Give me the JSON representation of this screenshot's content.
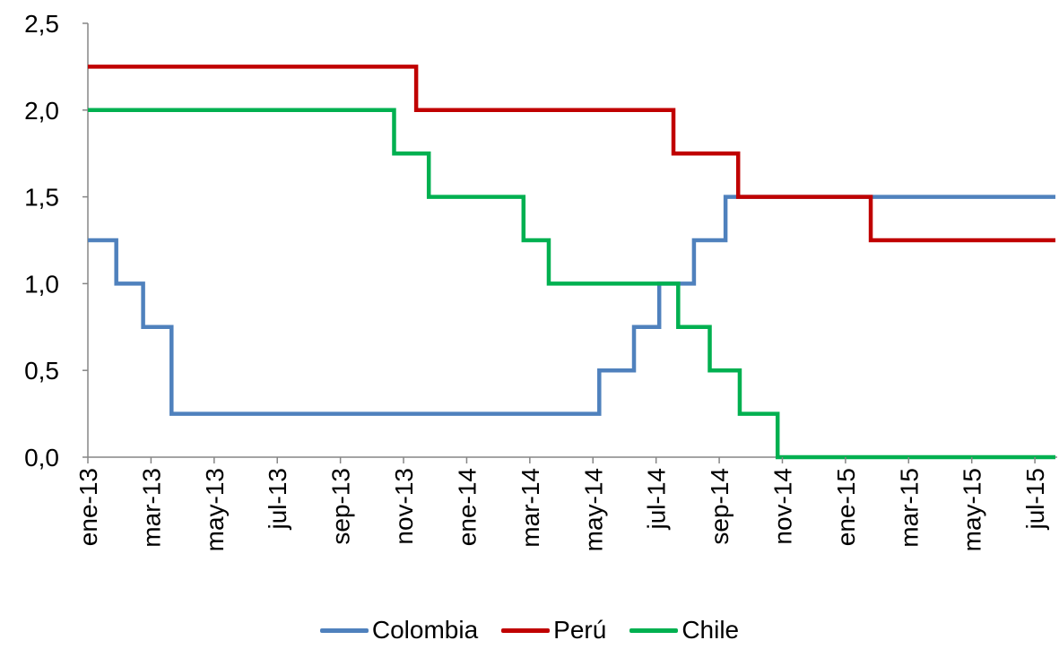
{
  "chart_data": {
    "type": "line",
    "title": "",
    "xlabel": "",
    "ylabel": "",
    "ylim": [
      0,
      2.5
    ],
    "yticks": [
      "0,0",
      "0,5",
      "1,0",
      "1,5",
      "2,0",
      "2,5"
    ],
    "ytick_values": [
      0,
      0.5,
      1.0,
      1.5,
      2.0,
      2.5
    ],
    "x_tick_labels": [
      "ene-13",
      "mar-13",
      "may-13",
      "jul-13",
      "sep-13",
      "nov-13",
      "ene-14",
      "mar-14",
      "may-14",
      "jul-14",
      "sep-14",
      "nov-14",
      "ene-15",
      "mar-15",
      "may-15",
      "jul-15"
    ],
    "x_tick_months": [
      0,
      2,
      4,
      6,
      8,
      10,
      12,
      14,
      16,
      18,
      20,
      22,
      24,
      26,
      28,
      30
    ],
    "x_range_months": [
      0,
      30.65
    ],
    "grid": false,
    "legend_position": "bottom",
    "step": true,
    "series": [
      {
        "name": "Colombia",
        "color": "#4F81BD",
        "points": [
          [
            0,
            1.25
          ],
          [
            0.9,
            1.0
          ],
          [
            1.75,
            0.75
          ],
          [
            2.65,
            0.25
          ],
          [
            16.2,
            0.5
          ],
          [
            17.3,
            0.75
          ],
          [
            18.1,
            1.0
          ],
          [
            19.2,
            1.25
          ],
          [
            20.2,
            1.5
          ],
          [
            30.65,
            1.5
          ]
        ]
      },
      {
        "name": "Perú",
        "color": "#C00000",
        "points": [
          [
            0,
            2.25
          ],
          [
            10.4,
            2.0
          ],
          [
            18.55,
            1.75
          ],
          [
            20.6,
            1.5
          ],
          [
            24.8,
            1.25
          ],
          [
            30.65,
            1.25
          ]
        ]
      },
      {
        "name": "Chile",
        "color": "#00B050",
        "points": [
          [
            0,
            2.0
          ],
          [
            9.7,
            1.75
          ],
          [
            10.8,
            1.5
          ],
          [
            13.8,
            1.25
          ],
          [
            14.6,
            1.0
          ],
          [
            18.7,
            0.75
          ],
          [
            19.7,
            0.5
          ],
          [
            20.65,
            0.25
          ],
          [
            21.85,
            0.0
          ],
          [
            30.65,
            0.0
          ]
        ]
      }
    ]
  }
}
